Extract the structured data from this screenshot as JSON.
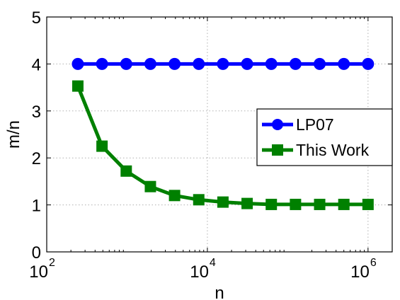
{
  "chart_data": {
    "type": "line",
    "title": "",
    "xlabel": "n",
    "ylabel": "m/n",
    "xscale": "log",
    "xlim": [
      100,
      2000000
    ],
    "ylim": [
      0,
      5
    ],
    "x_ticks": [
      {
        "base": "10",
        "exp": "2"
      },
      {
        "base": "10",
        "exp": "4"
      },
      {
        "base": "10",
        "exp": "6"
      }
    ],
    "x_tick_values": [
      100,
      10000,
      1000000
    ],
    "y_ticks": [
      "0",
      "1",
      "2",
      "3",
      "4",
      "5"
    ],
    "y_tick_values": [
      0,
      1,
      2,
      3,
      4,
      5
    ],
    "grid": true,
    "legend_position": "right",
    "x": [
      244,
      488,
      977,
      1953,
      3906,
      7813,
      15625,
      31250,
      62500,
      125000,
      250000,
      500000,
      1000000
    ],
    "series": [
      {
        "name": "LP07",
        "color": "#0000ff",
        "marker": "circle",
        "values": [
          4,
          4,
          4,
          4,
          4,
          4,
          4,
          4,
          4,
          4,
          4,
          4,
          4
        ]
      },
      {
        "name": "This Work",
        "color": "#008000",
        "marker": "square",
        "values": [
          3.53,
          2.25,
          1.72,
          1.39,
          1.2,
          1.11,
          1.06,
          1.03,
          1.01,
          1.01,
          1.01,
          1.01,
          1.01
        ]
      }
    ]
  }
}
